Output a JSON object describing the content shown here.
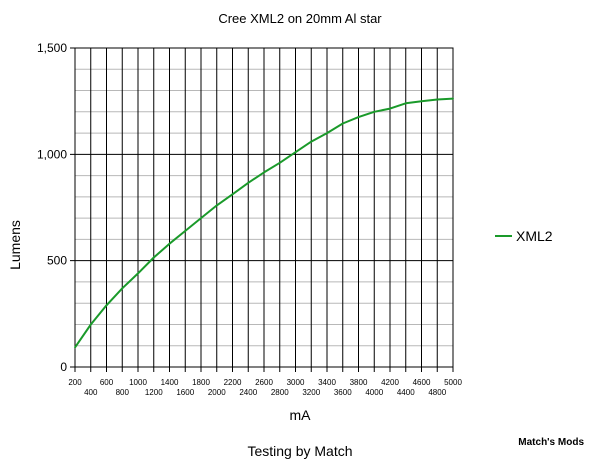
{
  "chart_data": {
    "type": "line",
    "title": "Cree XML2 on 20mm Al star",
    "xlabel": "mA",
    "ylabel": "Lumens",
    "footer": "Testing by Match",
    "credit": "Match's Mods",
    "xlim": [
      200,
      5000
    ],
    "ylim": [
      0,
      1500
    ],
    "x_ticks": [
      200,
      400,
      600,
      800,
      1000,
      1200,
      1400,
      1600,
      1800,
      2000,
      2200,
      2400,
      2600,
      2800,
      3000,
      3200,
      3400,
      3600,
      3800,
      4000,
      4200,
      4400,
      4600,
      4800,
      5000
    ],
    "y_ticks": [
      0,
      500,
      1000,
      1500
    ],
    "y_tick_labels": [
      "0",
      "500",
      "1,000",
      "1,500"
    ],
    "grid": true,
    "legend_position": "right",
    "series": [
      {
        "name": "XML2",
        "color": "#1a9a2a",
        "x": [
          200,
          400,
          600,
          800,
          1000,
          1200,
          1400,
          1600,
          1800,
          2000,
          2200,
          2400,
          2600,
          2800,
          3000,
          3200,
          3400,
          3600,
          3800,
          4000,
          4200,
          4400,
          4600,
          4800,
          5000
        ],
        "values": [
          92,
          200,
          290,
          370,
          440,
          515,
          580,
          640,
          700,
          760,
          812,
          866,
          915,
          960,
          1010,
          1060,
          1100,
          1145,
          1175,
          1200,
          1215,
          1240,
          1250,
          1258,
          1262
        ]
      }
    ]
  }
}
